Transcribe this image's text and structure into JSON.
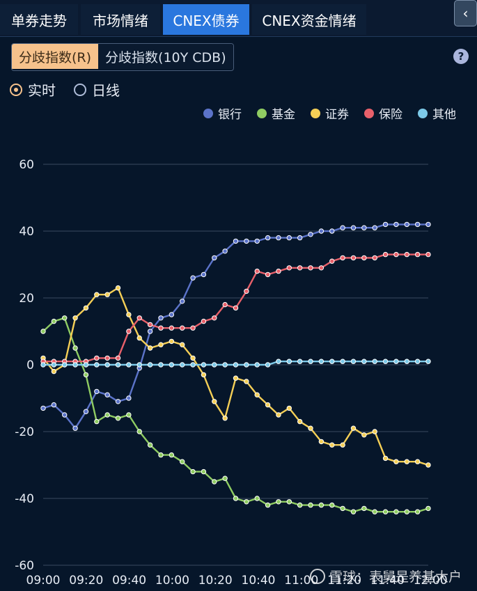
{
  "tabs": [
    {
      "label": "单券走势",
      "active": false
    },
    {
      "label": "市场情绪",
      "active": false
    },
    {
      "label": "CNEX债券",
      "active": true
    },
    {
      "label": "CNEX资金情绪",
      "active": false
    }
  ],
  "collapse_icon": "chevron-left-icon",
  "segment": {
    "options": [
      "分歧指数(R)",
      "分歧指数(10Y CDB)"
    ],
    "selected": "分歧指数(R)"
  },
  "help_icon": "question-icon",
  "help_label": "?",
  "radio": {
    "options": [
      "实时",
      "日线"
    ],
    "selected": "实时"
  },
  "watermark": "雪球：表舅是养基大户",
  "colors": {
    "accent_tab": "#2a77de",
    "segment_active": "#f6c28c",
    "banks": "#5b73c9",
    "funds": "#8fcc62",
    "securities": "#f5cf56",
    "insurance": "#e8606a",
    "others": "#7cc9e8"
  },
  "chart_data": {
    "type": "line",
    "title": "",
    "xlabel": "",
    "ylabel": "",
    "ylim": [
      -60,
      60
    ],
    "yticks": [
      "60",
      "40",
      "20",
      "0",
      "-20",
      "-40",
      "-60"
    ],
    "xticks": [
      "09:00",
      "09:20",
      "09:40",
      "10:00",
      "10:20",
      "10:40",
      "11:00",
      "11:20",
      "11:40",
      "12:00"
    ],
    "legend_position": "top-right",
    "grid": true,
    "series": [
      {
        "name": "银行",
        "color": "#5b73c9",
        "values": [
          -13,
          -12,
          -15,
          -19,
          -14,
          -8,
          -9,
          -11,
          -10,
          -1,
          10,
          14,
          15,
          19,
          26,
          27,
          32,
          34,
          37,
          37,
          37,
          38,
          38,
          38,
          38,
          39,
          40,
          40,
          41,
          41,
          41,
          41,
          42,
          42,
          42,
          42,
          42
        ]
      },
      {
        "name": "基金",
        "color": "#8fcc62",
        "values": [
          10,
          13,
          14,
          5,
          -3,
          -17,
          -15,
          -16,
          -15,
          -20,
          -24,
          -27,
          -27,
          -29,
          -32,
          -32,
          -35,
          -34,
          -40,
          -41,
          -40,
          -42,
          -41,
          -41,
          -42,
          -42,
          -42,
          -42,
          -43,
          -44,
          -43,
          -44,
          -44,
          -44,
          -44,
          -44,
          -43
        ]
      },
      {
        "name": "证券",
        "color": "#f5cf56",
        "values": [
          2,
          -2,
          0,
          14,
          17,
          21,
          21,
          23,
          15,
          8,
          5,
          6,
          7,
          6,
          2,
          -3,
          -11,
          -16,
          -4,
          -5,
          -9,
          -12,
          -15,
          -13,
          -17,
          -19,
          -23,
          -24,
          -24,
          -19,
          -21,
          -20,
          -28,
          -29,
          -29,
          -29,
          -30
        ]
      },
      {
        "name": "保险",
        "color": "#e8606a",
        "values": [
          1,
          1,
          1,
          1,
          1,
          2,
          2,
          2,
          10,
          14,
          12,
          11,
          11,
          11,
          11,
          13,
          14,
          18,
          17,
          22,
          28,
          27,
          28,
          29,
          29,
          29,
          29,
          31,
          32,
          32,
          32,
          32,
          33,
          33,
          33,
          33,
          33
        ]
      },
      {
        "name": "其他",
        "color": "#7cc9e8",
        "values": [
          0,
          0,
          0,
          0,
          0,
          0,
          0,
          0,
          0,
          0,
          0,
          0,
          0,
          0,
          0,
          0,
          0,
          0,
          0,
          0,
          0,
          0,
          1,
          1,
          1,
          1,
          1,
          1,
          1,
          1,
          1,
          1,
          1,
          1,
          1,
          1,
          1
        ]
      }
    ]
  }
}
